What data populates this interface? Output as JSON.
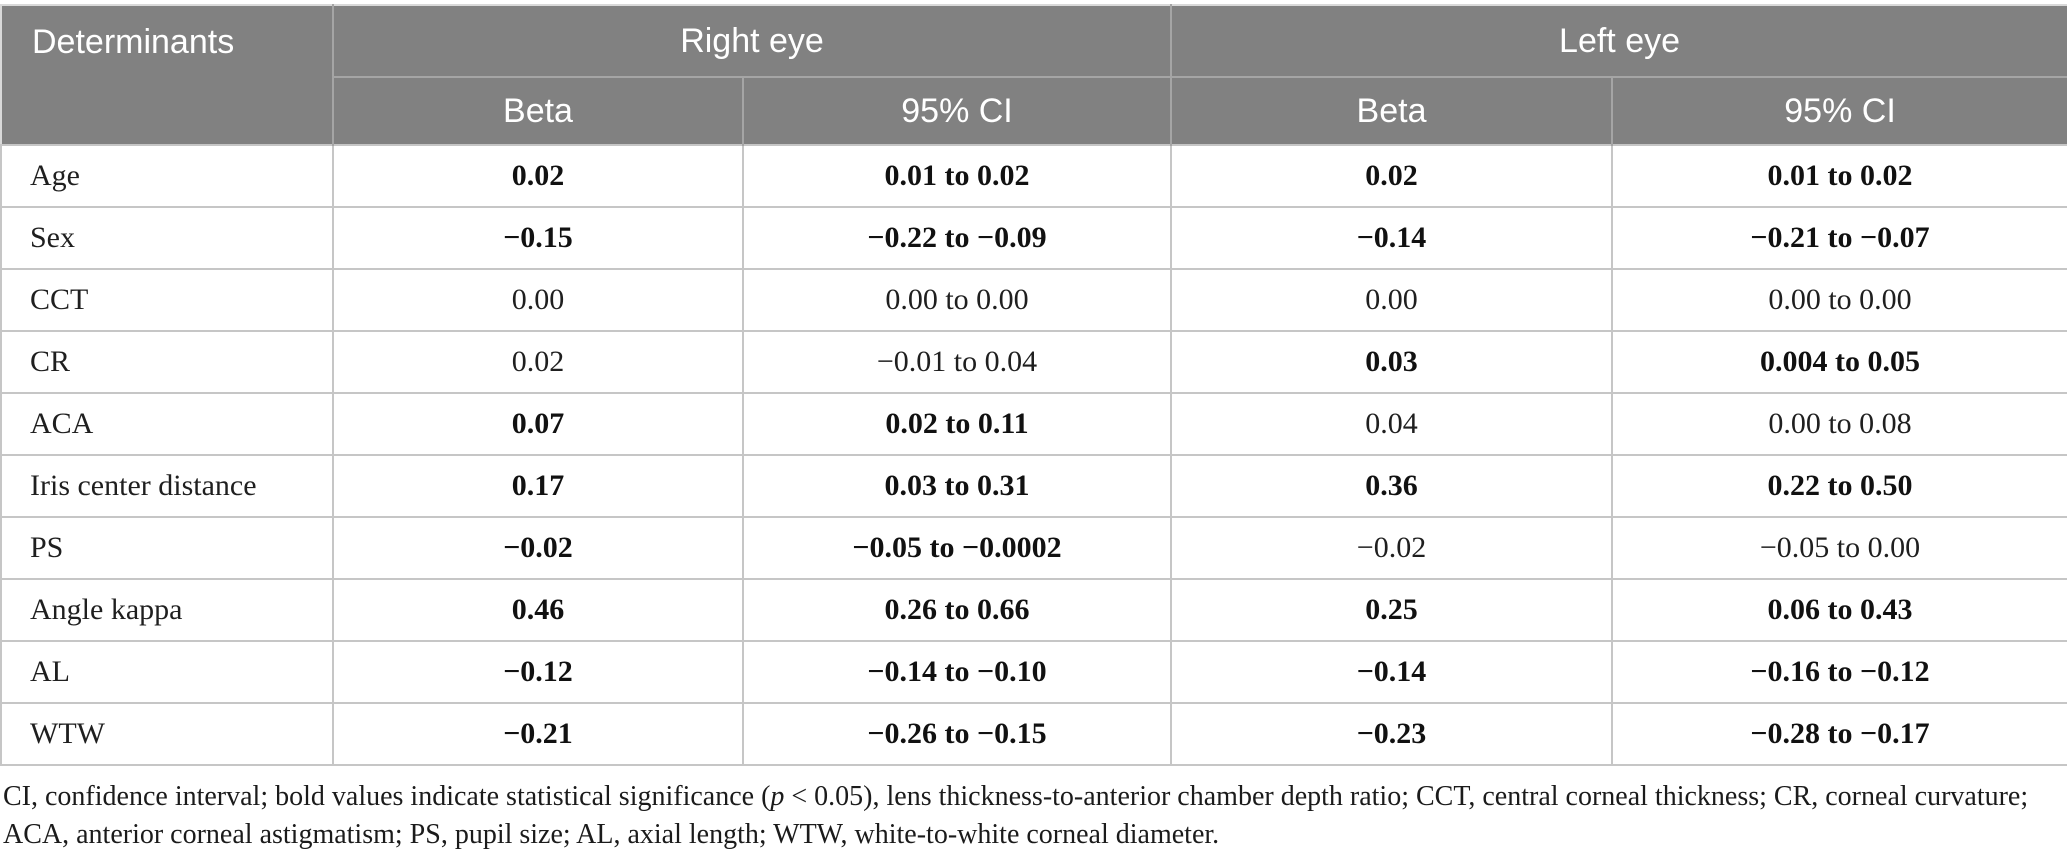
{
  "header": {
    "determinants": "Determinants",
    "right_eye": "Right eye",
    "left_eye": "Left eye",
    "beta": "Beta",
    "ci": "95% CI"
  },
  "table": {
    "column_keys": [
      "right_beta",
      "right_ci",
      "left_beta",
      "left_ci"
    ],
    "rows": [
      {
        "label": "Age",
        "cells": [
          {
            "value": "0.02",
            "bold": true
          },
          {
            "value": "0.01 to 0.02",
            "bold": true
          },
          {
            "value": "0.02",
            "bold": true
          },
          {
            "value": "0.01 to 0.02",
            "bold": true
          }
        ]
      },
      {
        "label": "Sex",
        "cells": [
          {
            "value": "−0.15",
            "bold": true
          },
          {
            "value": "−0.22 to −0.09",
            "bold": true
          },
          {
            "value": "−0.14",
            "bold": true
          },
          {
            "value": "−0.21 to −0.07",
            "bold": true
          }
        ]
      },
      {
        "label": "CCT",
        "cells": [
          {
            "value": "0.00",
            "bold": false
          },
          {
            "value": "0.00 to 0.00",
            "bold": false
          },
          {
            "value": "0.00",
            "bold": false
          },
          {
            "value": "0.00 to 0.00",
            "bold": false
          }
        ]
      },
      {
        "label": "CR",
        "cells": [
          {
            "value": "0.02",
            "bold": false
          },
          {
            "value": "−0.01 to 0.04",
            "bold": false
          },
          {
            "value": "0.03",
            "bold": true
          },
          {
            "value": "0.004 to 0.05",
            "bold": true
          }
        ]
      },
      {
        "label": "ACA",
        "cells": [
          {
            "value": "0.07",
            "bold": true
          },
          {
            "value": "0.02 to 0.11",
            "bold": true
          },
          {
            "value": "0.04",
            "bold": false
          },
          {
            "value": "0.00 to 0.08",
            "bold": false
          }
        ]
      },
      {
        "label": "Iris center distance",
        "cells": [
          {
            "value": "0.17",
            "bold": true
          },
          {
            "value": "0.03 to 0.31",
            "bold": true
          },
          {
            "value": "0.36",
            "bold": true
          },
          {
            "value": "0.22 to 0.50",
            "bold": true
          }
        ]
      },
      {
        "label": "PS",
        "cells": [
          {
            "value": "−0.02",
            "bold": true
          },
          {
            "value": "−0.05 to −0.0002",
            "bold": true
          },
          {
            "value": "−0.02",
            "bold": false
          },
          {
            "value": "−0.05 to 0.00",
            "bold": false
          }
        ]
      },
      {
        "label": "Angle kappa",
        "cells": [
          {
            "value": "0.46",
            "bold": true
          },
          {
            "value": "0.26 to 0.66",
            "bold": true
          },
          {
            "value": "0.25",
            "bold": true
          },
          {
            "value": "0.06 to 0.43",
            "bold": true
          }
        ]
      },
      {
        "label": "AL",
        "cells": [
          {
            "value": "−0.12",
            "bold": true
          },
          {
            "value": "−0.14 to −0.10",
            "bold": true
          },
          {
            "value": "−0.14",
            "bold": true
          },
          {
            "value": "−0.16 to −0.12",
            "bold": true
          }
        ]
      },
      {
        "label": "WTW",
        "cells": [
          {
            "value": "−0.21",
            "bold": true
          },
          {
            "value": "−0.26 to −0.15",
            "bold": true
          },
          {
            "value": "−0.23",
            "bold": true
          },
          {
            "value": "−0.28 to −0.17",
            "bold": true
          }
        ]
      }
    ]
  },
  "footnote": {
    "before_italic": "CI, confidence interval; bold values indicate statistical significance (",
    "italic": "p",
    "after_italic": " < 0.05), lens thickness-to-anterior chamber depth ratio; CCT, central corneal thickness; CR, corneal curvature; ACA, anterior corneal astigmatism; PS, pupil size; AL, axial length; WTW, white-to-white corneal diameter."
  },
  "colors": {
    "header_background": "#818181",
    "header_text": "#ffffff",
    "header_divider": "#a5a5a5",
    "body_border": "#c6c6c6",
    "text": "#1f1f1f"
  }
}
